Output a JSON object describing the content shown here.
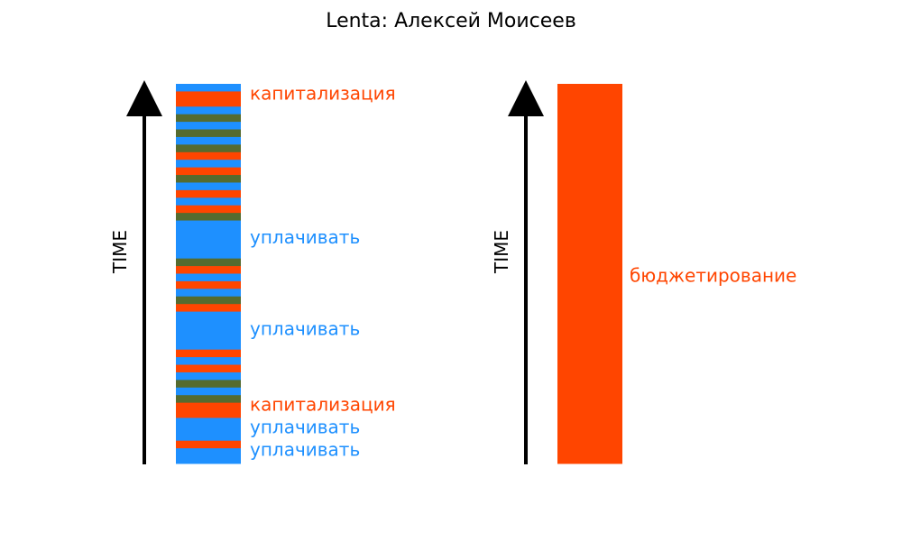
{
  "title": "Lenta: Алексей Моисеев",
  "colors": {
    "blue": "#1e90ff",
    "red": "#ff4500",
    "green": "#556b2f",
    "axis": "#000000"
  },
  "chart_data": [
    {
      "type": "timeline-strip",
      "axis_label": "TIME",
      "segments": [
        {
          "c": "blue",
          "h": 1
        },
        {
          "c": "red",
          "h": 2
        },
        {
          "c": "blue",
          "h": 1
        },
        {
          "c": "green",
          "h": 1
        },
        {
          "c": "blue",
          "h": 1
        },
        {
          "c": "green",
          "h": 1
        },
        {
          "c": "blue",
          "h": 1
        },
        {
          "c": "green",
          "h": 1
        },
        {
          "c": "red",
          "h": 1
        },
        {
          "c": "blue",
          "h": 1
        },
        {
          "c": "red",
          "h": 1
        },
        {
          "c": "green",
          "h": 1
        },
        {
          "c": "blue",
          "h": 1
        },
        {
          "c": "red",
          "h": 1
        },
        {
          "c": "blue",
          "h": 1
        },
        {
          "c": "red",
          "h": 1
        },
        {
          "c": "green",
          "h": 1
        },
        {
          "c": "blue",
          "h": 5
        },
        {
          "c": "green",
          "h": 1
        },
        {
          "c": "red",
          "h": 1
        },
        {
          "c": "blue",
          "h": 1
        },
        {
          "c": "red",
          "h": 1
        },
        {
          "c": "blue",
          "h": 1
        },
        {
          "c": "green",
          "h": 1
        },
        {
          "c": "red",
          "h": 1
        },
        {
          "c": "blue",
          "h": 5
        },
        {
          "c": "red",
          "h": 1
        },
        {
          "c": "blue",
          "h": 1
        },
        {
          "c": "red",
          "h": 1
        },
        {
          "c": "blue",
          "h": 1
        },
        {
          "c": "green",
          "h": 1
        },
        {
          "c": "blue",
          "h": 1
        },
        {
          "c": "green",
          "h": 1
        },
        {
          "c": "red",
          "h": 2
        },
        {
          "c": "blue",
          "h": 3
        },
        {
          "c": "red",
          "h": 1
        },
        {
          "c": "blue",
          "h": 2
        }
      ],
      "labels": [
        {
          "text": "капитализация",
          "color": "red",
          "pos": 0.028
        },
        {
          "text": "уплачивать",
          "color": "blue",
          "pos": 0.407
        },
        {
          "text": "уплачивать",
          "color": "blue",
          "pos": 0.648
        },
        {
          "text": "капитализация",
          "color": "red",
          "pos": 0.848
        },
        {
          "text": "уплачивать",
          "color": "blue",
          "pos": 0.907
        },
        {
          "text": "уплачивать",
          "color": "blue",
          "pos": 0.967
        }
      ]
    },
    {
      "type": "timeline-strip",
      "axis_label": "TIME",
      "segments": [
        {
          "c": "red",
          "h": 1
        }
      ],
      "labels": [
        {
          "text": "бюджетирование",
          "color": "red",
          "pos": 0.508
        }
      ]
    }
  ]
}
